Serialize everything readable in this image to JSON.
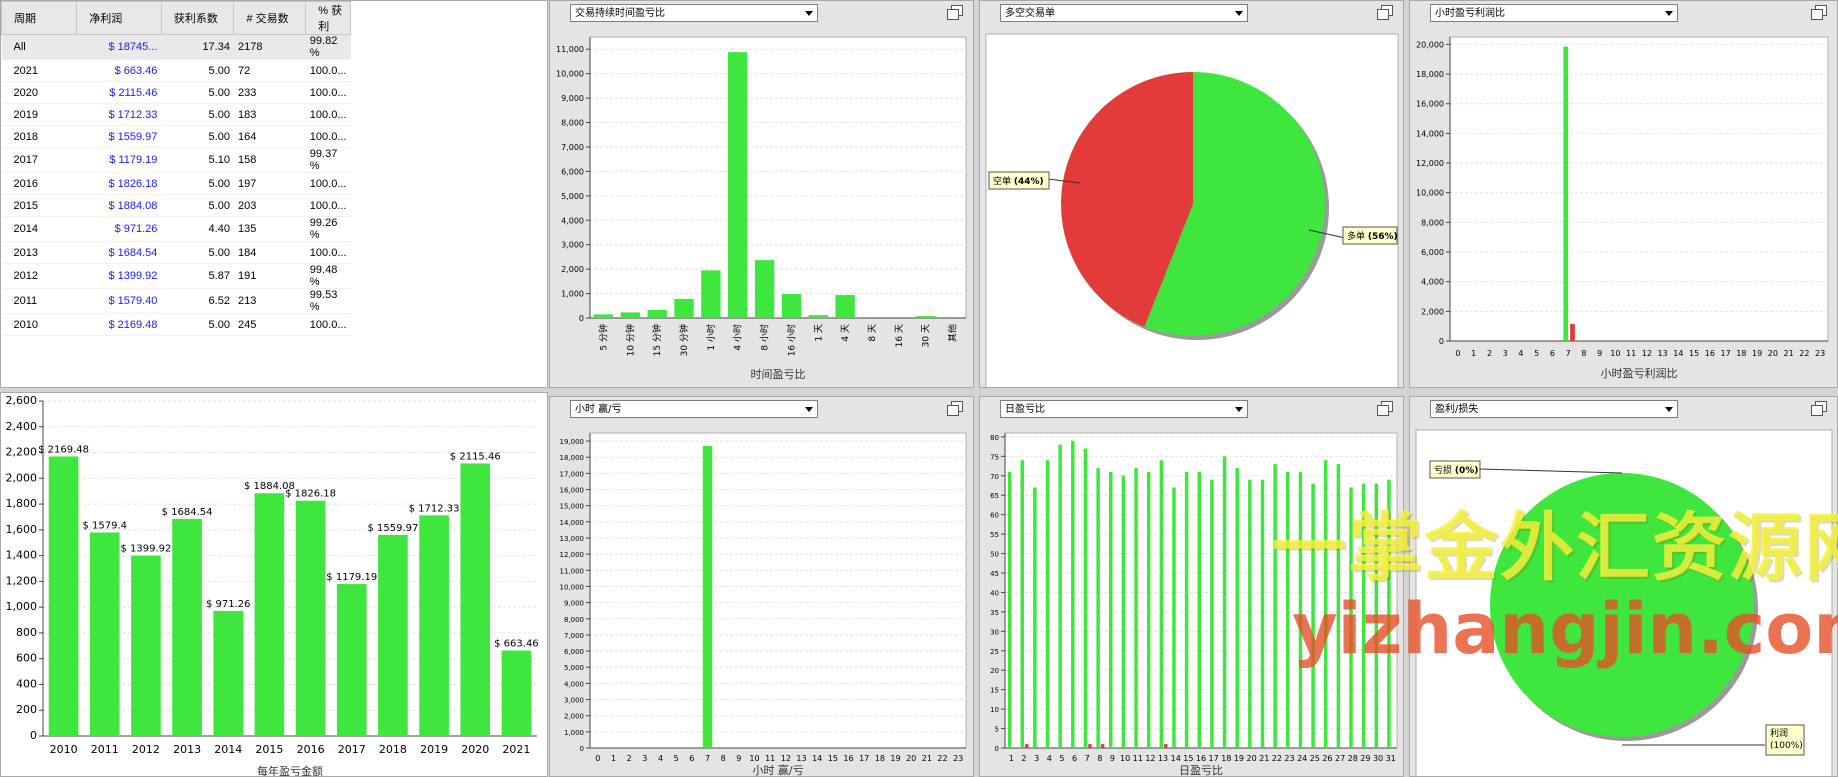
{
  "stats_table": {
    "headers": [
      "周期",
      "净利润",
      "获利系数",
      "# 交易数",
      "% 获利"
    ],
    "rows": [
      {
        "period": "All",
        "net": "$ 18745...",
        "pf": "17.34",
        "trades": "2178",
        "win": "99.82 %"
      },
      {
        "period": "2021",
        "net": "$ 663.46",
        "pf": "5.00",
        "trades": "72",
        "win": "100.0..."
      },
      {
        "period": "2020",
        "net": "$ 2115.46",
        "pf": "5.00",
        "trades": "233",
        "win": "100.0..."
      },
      {
        "period": "2019",
        "net": "$ 1712.33",
        "pf": "5.00",
        "trades": "183",
        "win": "100.0..."
      },
      {
        "period": "2018",
        "net": "$ 1559.97",
        "pf": "5.00",
        "trades": "164",
        "win": "100.0..."
      },
      {
        "period": "2017",
        "net": "$ 1179.19",
        "pf": "5.10",
        "trades": "158",
        "win": "99.37 %"
      },
      {
        "period": "2016",
        "net": "$ 1826.18",
        "pf": "5.00",
        "trades": "197",
        "win": "100.0..."
      },
      {
        "period": "2015",
        "net": "$ 1884.08",
        "pf": "5.00",
        "trades": "203",
        "win": "100.0..."
      },
      {
        "period": "2014",
        "net": "$ 971.26",
        "pf": "4.40",
        "trades": "135",
        "win": "99.26 %"
      },
      {
        "period": "2013",
        "net": "$ 1684.54",
        "pf": "5.00",
        "trades": "184",
        "win": "100.0..."
      },
      {
        "period": "2012",
        "net": "$ 1399.92",
        "pf": "5.87",
        "trades": "191",
        "win": "99.48 %"
      },
      {
        "period": "2011",
        "net": "$ 1579.40",
        "pf": "6.52",
        "trades": "213",
        "win": "99.53 %"
      },
      {
        "period": "2010",
        "net": "$ 2169.48",
        "pf": "5.00",
        "trades": "245",
        "win": "100.0..."
      }
    ]
  },
  "dropdowns": {
    "duration": "交易持续时间盈亏比",
    "longshort": "多空交易单",
    "hourly_profit": "小时盈亏利润比",
    "hour_winloss": "小时 赢/亏",
    "daily": "日盈亏比",
    "profit_loss": "盈利/损失"
  },
  "watermark": {
    "line1": "一掌金外汇资源网",
    "line2": "yizhangjin.com"
  },
  "colors": {
    "green": "#3ee63e",
    "red": "#e33a3a"
  },
  "chart_data": [
    {
      "id": "yearly",
      "type": "bar",
      "xlabel": "每年盈亏金额",
      "categories": [
        "2010",
        "2011",
        "2012",
        "2013",
        "2014",
        "2015",
        "2016",
        "2017",
        "2018",
        "2019",
        "2020",
        "2021"
      ],
      "values": [
        2169.48,
        1579.4,
        1399.92,
        1684.54,
        971.26,
        1884.08,
        1826.18,
        1179.19,
        1559.97,
        1712.33,
        2115.46,
        663.46
      ],
      "value_labels": [
        "$ 2169.48",
        "$ 1579.4",
        "$ 1399.92",
        "$ 1684.54",
        "$ 971.26",
        "$ 1884.08",
        "$ 1826.18",
        "$ 1179.19",
        "$ 1559.97",
        "$ 1712.33",
        "$ 2115.46",
        "$ 663.46"
      ],
      "ylim": [
        0,
        2600
      ],
      "yticks": [
        "0",
        "200",
        "400",
        "600",
        "800",
        "1,000",
        "1,200",
        "1,400",
        "1,600",
        "1,800",
        "2,000",
        "2,200",
        "2,400",
        "2,600"
      ]
    },
    {
      "id": "duration",
      "type": "bar",
      "xlabel": "时间盈亏比",
      "categories": [
        "5 分钟",
        "10 分钟",
        "15 分钟",
        "30 分钟",
        "1 小时",
        "4 小时",
        "8 小时",
        "16 小时",
        "1 天",
        "4 天",
        "8 天",
        "16 天",
        "30 天",
        "其他"
      ],
      "values": [
        150,
        230,
        330,
        780,
        1950,
        10880,
        2370,
        980,
        120,
        940,
        0,
        0,
        80,
        0
      ],
      "ylim": [
        0,
        11500
      ],
      "yticks": [
        "0",
        "1,000",
        "2,000",
        "3,000",
        "4,000",
        "5,000",
        "6,000",
        "7,000",
        "8,000",
        "9,000",
        "10,000",
        "11,000"
      ]
    },
    {
      "id": "longshort",
      "type": "pie",
      "slices": [
        {
          "label": "多单",
          "pct": "(56%)",
          "value": 56,
          "color": "#3ee63e"
        },
        {
          "label": "空单",
          "pct": "(44%)",
          "value": 44,
          "color": "#e33a3a"
        }
      ]
    },
    {
      "id": "hourly_profit",
      "type": "bar",
      "xlabel": "小时盈亏利润比",
      "categories": [
        "0",
        "1",
        "2",
        "3",
        "4",
        "5",
        "6",
        "7",
        "8",
        "9",
        "10",
        "11",
        "12",
        "13",
        "14",
        "15",
        "16",
        "17",
        "18",
        "19",
        "20",
        "21",
        "22",
        "23"
      ],
      "series": [
        {
          "color": "#3ee63e",
          "values": [
            0,
            0,
            0,
            0,
            0,
            0,
            0,
            19850,
            0,
            0,
            0,
            0,
            0,
            0,
            0,
            0,
            0,
            0,
            0,
            0,
            0,
            0,
            0,
            0
          ]
        },
        {
          "color": "#e33a3a",
          "values": [
            0,
            0,
            0,
            0,
            0,
            0,
            0,
            1150,
            0,
            0,
            0,
            0,
            0,
            0,
            0,
            0,
            0,
            0,
            0,
            0,
            0,
            0,
            0,
            0
          ]
        }
      ],
      "ylim": [
        0,
        20500
      ],
      "yticks": [
        "0",
        "2,000",
        "4,000",
        "6,000",
        "8,000",
        "10,000",
        "12,000",
        "14,000",
        "16,000",
        "18,000",
        "20,000"
      ]
    },
    {
      "id": "hour_winloss",
      "type": "bar",
      "xlabel": "小时 赢/亏",
      "categories": [
        "0",
        "1",
        "2",
        "3",
        "4",
        "5",
        "6",
        "7",
        "8",
        "9",
        "10",
        "11",
        "12",
        "13",
        "14",
        "15",
        "16",
        "17",
        "18",
        "19",
        "20",
        "21",
        "22",
        "23"
      ],
      "series": [
        {
          "color": "#3ee63e",
          "values": [
            0,
            0,
            0,
            0,
            0,
            0,
            0,
            18700,
            0,
            0,
            0,
            0,
            0,
            0,
            0,
            0,
            0,
            0,
            0,
            0,
            0,
            0,
            0,
            0
          ]
        }
      ],
      "ylim": [
        0,
        19500
      ],
      "yticks": [
        "0",
        "1,000",
        "2,000",
        "3,000",
        "4,000",
        "5,000",
        "6,000",
        "7,000",
        "8,000",
        "9,000",
        "10,000",
        "11,000",
        "12,000",
        "13,000",
        "14,000",
        "15,000",
        "16,000",
        "17,000",
        "18,000",
        "19,000"
      ]
    },
    {
      "id": "daily",
      "type": "bar",
      "xlabel": "日盈亏比",
      "categories": [
        "1",
        "2",
        "3",
        "4",
        "5",
        "6",
        "7",
        "8",
        "9",
        "10",
        "11",
        "12",
        "13",
        "14",
        "15",
        "16",
        "17",
        "18",
        "19",
        "20",
        "21",
        "22",
        "23",
        "24",
        "25",
        "26",
        "27",
        "28",
        "29",
        "30",
        "31"
      ],
      "series": [
        {
          "color": "#3ee63e",
          "values": [
            71,
            74,
            67,
            74,
            78,
            79,
            77,
            72,
            71,
            70,
            72,
            71,
            74,
            67,
            71,
            71,
            69,
            75,
            72,
            69,
            69,
            73,
            71,
            71,
            68,
            74,
            73,
            67,
            68,
            68,
            69
          ]
        },
        {
          "color": "#e33a3a",
          "values": [
            0,
            1,
            0,
            0,
            0,
            0,
            1,
            1,
            0,
            0,
            0,
            0,
            1,
            0,
            0,
            0,
            0,
            0,
            0,
            0,
            0,
            0,
            0,
            0,
            0,
            0,
            0,
            0,
            0,
            0,
            0
          ]
        }
      ],
      "ylim": [
        0,
        81
      ],
      "yticks": [
        "0",
        "5",
        "10",
        "15",
        "20",
        "25",
        "30",
        "35",
        "40",
        "45",
        "50",
        "55",
        "60",
        "65",
        "70",
        "75",
        "80"
      ]
    },
    {
      "id": "profit_loss",
      "type": "pie",
      "slices": [
        {
          "label": "利润",
          "pct": "(100%)",
          "value": 100,
          "color": "#3ee63e"
        },
        {
          "label": "亏损",
          "pct": "(0%)",
          "value": 0,
          "color": "#e33a3a"
        }
      ]
    }
  ]
}
